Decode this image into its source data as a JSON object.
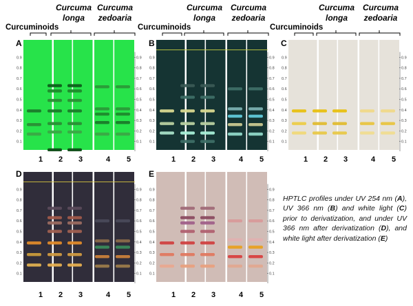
{
  "headers": {
    "curcuminoids": "Curcuminoids",
    "species_longa": [
      "Curcuma",
      "longa"
    ],
    "species_zedoaria": [
      "Curcuma",
      "zedoaria"
    ]
  },
  "scale_ticks": [
    "0.9",
    "0.8",
    "0.7",
    "0.6",
    "0.5",
    "0.4",
    "0.3",
    "0.2",
    "0.1"
  ],
  "lane_numbers": [
    "1",
    "2",
    "3",
    "4",
    "5"
  ],
  "panels": [
    {
      "letter": "A",
      "bg": "#27e34a",
      "lanes": [
        [
          {
            "rf": 0.39,
            "c": "#1a7a2a"
          },
          {
            "rf": 0.26,
            "c": "#2a8e35"
          },
          {
            "rf": 0.17,
            "c": "#3aa845"
          }
        ],
        [
          {
            "rf": 0.63,
            "c": "#0d5e1a"
          },
          {
            "rf": 0.58,
            "c": "#1e8a2c"
          },
          {
            "rf": 0.49,
            "c": "#2a8e35"
          },
          {
            "rf": 0.39,
            "c": "#1a7a2a"
          },
          {
            "rf": 0.27,
            "c": "#2a8e35"
          },
          {
            "rf": 0.19,
            "c": "#3aa845"
          },
          {
            "rf": 0.02,
            "c": "#0b4a14"
          }
        ],
        [
          {
            "rf": 0.63,
            "c": "#0d5e1a"
          },
          {
            "rf": 0.58,
            "c": "#1e8a2c"
          },
          {
            "rf": 0.49,
            "c": "#2a8e35"
          },
          {
            "rf": 0.39,
            "c": "#1a7a2a"
          },
          {
            "rf": 0.27,
            "c": "#2a8e35"
          },
          {
            "rf": 0.19,
            "c": "#3aa845"
          },
          {
            "rf": 0.02,
            "c": "#0b4a14"
          }
        ],
        [
          {
            "rf": 0.62,
            "c": "#2a9a38"
          },
          {
            "rf": 0.41,
            "c": "#2a9a38"
          },
          {
            "rf": 0.36,
            "c": "#1e8a2c"
          },
          {
            "rf": 0.28,
            "c": "#1a7a2a"
          },
          {
            "rf": 0.17,
            "c": "#3aa845"
          }
        ],
        [
          {
            "rf": 0.62,
            "c": "#2a9a38"
          },
          {
            "rf": 0.41,
            "c": "#2a9a38"
          },
          {
            "rf": 0.36,
            "c": "#1e8a2c"
          },
          {
            "rf": 0.28,
            "c": "#1a7a2a"
          },
          {
            "rf": 0.17,
            "c": "#3aa845"
          }
        ]
      ]
    },
    {
      "letter": "B",
      "bg": "#153433",
      "lanes": [
        [
          {
            "rf": 0.39,
            "c": "#d8d890"
          },
          {
            "rf": 0.27,
            "c": "#b8d0a0"
          },
          {
            "rf": 0.18,
            "c": "#a8e0c8"
          }
        ],
        [
          {
            "rf": 0.63,
            "c": "#3a5a55"
          },
          {
            "rf": 0.52,
            "c": "#3d6e66"
          },
          {
            "rf": 0.39,
            "c": "#d8d890"
          },
          {
            "rf": 0.27,
            "c": "#b8d0a0"
          },
          {
            "rf": 0.18,
            "c": "#a8f0d8"
          },
          {
            "rf": 0.1,
            "c": "#3d6e66"
          }
        ],
        [
          {
            "rf": 0.63,
            "c": "#3a5a55"
          },
          {
            "rf": 0.52,
            "c": "#3d6e66"
          },
          {
            "rf": 0.39,
            "c": "#d8d890"
          },
          {
            "rf": 0.27,
            "c": "#b8d0a0"
          },
          {
            "rf": 0.18,
            "c": "#a8f0d8"
          },
          {
            "rf": 0.1,
            "c": "#3d6e66"
          }
        ],
        [
          {
            "rf": 0.6,
            "c": "#3d6e66"
          },
          {
            "rf": 0.41,
            "c": "#7ab0b0"
          },
          {
            "rf": 0.34,
            "c": "#5fc8d8"
          },
          {
            "rf": 0.26,
            "c": "#c8c890"
          },
          {
            "rf": 0.17,
            "c": "#90d8c8"
          }
        ],
        [
          {
            "rf": 0.6,
            "c": "#3d6e66"
          },
          {
            "rf": 0.41,
            "c": "#7ab0b0"
          },
          {
            "rf": 0.34,
            "c": "#5fc8d8"
          },
          {
            "rf": 0.26,
            "c": "#c8c890"
          },
          {
            "rf": 0.17,
            "c": "#90d8c8"
          }
        ]
      ]
    },
    {
      "letter": "C",
      "bg": "#e6e2da",
      "lanes": [
        [
          {
            "rf": 0.39,
            "c": "#e8c010"
          },
          {
            "rf": 0.27,
            "c": "#eccc48"
          },
          {
            "rf": 0.18,
            "c": "#f0d878"
          }
        ],
        [
          {
            "rf": 0.39,
            "c": "#e8c010"
          },
          {
            "rf": 0.27,
            "c": "#e0bc30"
          },
          {
            "rf": 0.18,
            "c": "#e8c848"
          }
        ],
        [
          {
            "rf": 0.39,
            "c": "#e8c010"
          },
          {
            "rf": 0.27,
            "c": "#e0bc30"
          },
          {
            "rf": 0.18,
            "c": "#e8c848"
          }
        ],
        [
          {
            "rf": 0.39,
            "c": "#f0d888"
          },
          {
            "rf": 0.27,
            "c": "#e8c440"
          },
          {
            "rf": 0.18,
            "c": "#f0dc90"
          }
        ],
        [
          {
            "rf": 0.39,
            "c": "#f0d888"
          },
          {
            "rf": 0.27,
            "c": "#e8c440"
          },
          {
            "rf": 0.18,
            "c": "#f0dc90"
          }
        ]
      ]
    },
    {
      "letter": "D",
      "bg": "#302d3a",
      "lanes": [
        [
          {
            "rf": 0.39,
            "c": "#e08a2a"
          },
          {
            "rf": 0.28,
            "c": "#c89a3a"
          },
          {
            "rf": 0.18,
            "c": "#e0b050"
          }
        ],
        [
          {
            "rf": 0.72,
            "c": "#5a4a5a"
          },
          {
            "rf": 0.63,
            "c": "#a05a4a"
          },
          {
            "rf": 0.58,
            "c": "#9a6a60"
          },
          {
            "rf": 0.5,
            "c": "#a06050"
          },
          {
            "rf": 0.39,
            "c": "#e08a2a"
          },
          {
            "rf": 0.28,
            "c": "#d09a40"
          },
          {
            "rf": 0.18,
            "c": "#e8b050"
          }
        ],
        [
          {
            "rf": 0.72,
            "c": "#5a4a5a"
          },
          {
            "rf": 0.63,
            "c": "#a05a4a"
          },
          {
            "rf": 0.58,
            "c": "#9a6a60"
          },
          {
            "rf": 0.5,
            "c": "#a06050"
          },
          {
            "rf": 0.39,
            "c": "#e08a2a"
          },
          {
            "rf": 0.28,
            "c": "#d09a40"
          },
          {
            "rf": 0.18,
            "c": "#e8b050"
          }
        ],
        [
          {
            "rf": 0.6,
            "c": "#4a4a5a"
          },
          {
            "rf": 0.41,
            "c": "#8a6a4a"
          },
          {
            "rf": 0.35,
            "c": "#3a8a5a"
          },
          {
            "rf": 0.26,
            "c": "#c8803a"
          },
          {
            "rf": 0.17,
            "c": "#9a7a4a"
          }
        ],
        [
          {
            "rf": 0.6,
            "c": "#4a4a5a"
          },
          {
            "rf": 0.41,
            "c": "#8a6a4a"
          },
          {
            "rf": 0.35,
            "c": "#3a8a5a"
          },
          {
            "rf": 0.26,
            "c": "#c8803a"
          },
          {
            "rf": 0.17,
            "c": "#9a7a4a"
          }
        ]
      ]
    },
    {
      "letter": "E",
      "bg": "#d0bcb6",
      "lanes": [
        [
          {
            "rf": 0.39,
            "c": "#d04040"
          },
          {
            "rf": 0.28,
            "c": "#e07860"
          },
          {
            "rf": 0.17,
            "c": "#e8a890"
          }
        ],
        [
          {
            "rf": 0.72,
            "c": "#a06a78"
          },
          {
            "rf": 0.63,
            "c": "#8a4a60"
          },
          {
            "rf": 0.58,
            "c": "#a0608a"
          },
          {
            "rf": 0.5,
            "c": "#b06070"
          },
          {
            "rf": 0.39,
            "c": "#d04040"
          },
          {
            "rf": 0.28,
            "c": "#e07860"
          },
          {
            "rf": 0.17,
            "c": "#e8a080"
          }
        ],
        [
          {
            "rf": 0.72,
            "c": "#a06a78"
          },
          {
            "rf": 0.63,
            "c": "#8a4a60"
          },
          {
            "rf": 0.58,
            "c": "#a0608a"
          },
          {
            "rf": 0.5,
            "c": "#b06070"
          },
          {
            "rf": 0.39,
            "c": "#d04040"
          },
          {
            "rf": 0.28,
            "c": "#e07860"
          },
          {
            "rf": 0.17,
            "c": "#e8a080"
          }
        ],
        [
          {
            "rf": 0.6,
            "c": "#d89a9a"
          },
          {
            "rf": 0.42,
            "c": "#e0b0b0"
          },
          {
            "rf": 0.35,
            "c": "#e8a020"
          },
          {
            "rf": 0.26,
            "c": "#d84040"
          },
          {
            "rf": 0.17,
            "c": "#e0a890"
          }
        ],
        [
          {
            "rf": 0.6,
            "c": "#d89a9a"
          },
          {
            "rf": 0.42,
            "c": "#e0b0b0"
          },
          {
            "rf": 0.35,
            "c": "#e8a020"
          },
          {
            "rf": 0.26,
            "c": "#d84040"
          },
          {
            "rf": 0.17,
            "c": "#e0a890"
          }
        ]
      ]
    }
  ],
  "caption": {
    "p1": "HPTLC profiles under UV 254 nm (",
    "a": "A",
    "p2": "), UV 366 nm (",
    "b": "B",
    "p3": ") and white light (",
    "c": "C",
    "p4": ") prior to derivatization, and under UV 366 nm after derivatization (",
    "d": "D",
    "p5": "), and white light after derivatization (",
    "e": "E",
    "p6": ")"
  }
}
